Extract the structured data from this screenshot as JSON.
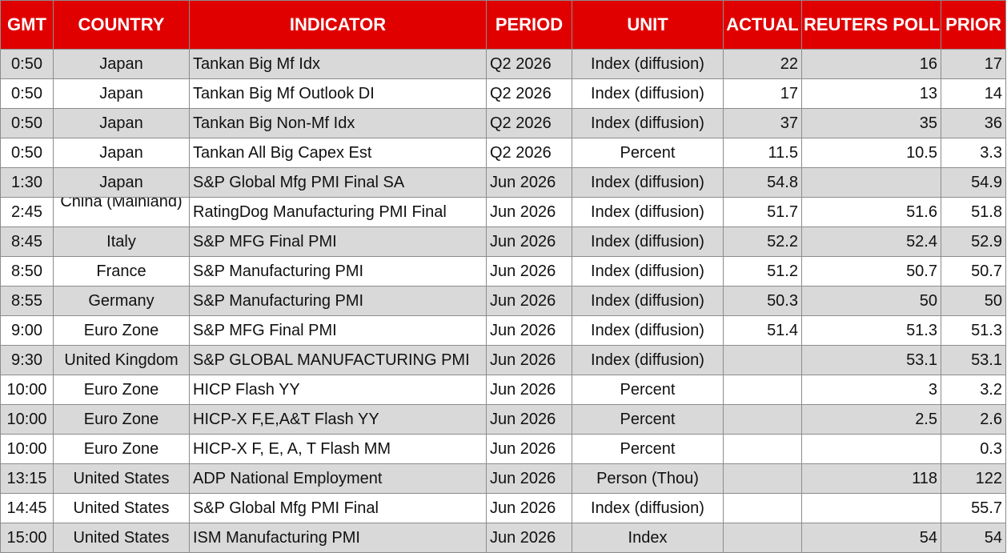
{
  "headers": [
    "GMT",
    "COUNTRY",
    "INDICATOR",
    "PERIOD",
    "UNIT",
    "ACTUAL",
    "REUTERS POLL",
    "PRIOR"
  ],
  "rows": [
    {
      "gmt": "0:50",
      "country": "Japan",
      "indicator": "Tankan Big Mf Idx",
      "period": "Q2 2026",
      "unit": "Index (diffusion)",
      "actual": "22",
      "poll": "16",
      "prior": "17"
    },
    {
      "gmt": "0:50",
      "country": "Japan",
      "indicator": "Tankan Big Mf Outlook DI",
      "period": "Q2 2026",
      "unit": "Index (diffusion)",
      "actual": "17",
      "poll": "13",
      "prior": "14"
    },
    {
      "gmt": "0:50",
      "country": "Japan",
      "indicator": "Tankan Big Non-Mf Idx",
      "period": "Q2 2026",
      "unit": "Index (diffusion)",
      "actual": "37",
      "poll": "35",
      "prior": "36"
    },
    {
      "gmt": "0:50",
      "country": "Japan",
      "indicator": "Tankan All Big Capex Est",
      "period": "Q2 2026",
      "unit": "Percent",
      "actual": "11.5",
      "poll": "10.5",
      "prior": "3.3"
    },
    {
      "gmt": "1:30",
      "country": "Japan",
      "indicator": "S&P Global Mfg PMI Final SA",
      "period": "Jun 2026",
      "unit": "Index (diffusion)",
      "actual": "54.8",
      "poll": "",
      "prior": "54.9"
    },
    {
      "gmt": "2:45",
      "country": "China (Mainland)",
      "indicator": "RatingDog Manufacturing PMI Final",
      "period": "Jun 2026",
      "unit": "Index (diffusion)",
      "actual": "51.7",
      "poll": "51.6",
      "prior": "51.8"
    },
    {
      "gmt": "8:45",
      "country": "Italy",
      "indicator": "S&P MFG Final PMI",
      "period": "Jun 2026",
      "unit": "Index (diffusion)",
      "actual": "52.2",
      "poll": "52.4",
      "prior": "52.9"
    },
    {
      "gmt": "8:50",
      "country": "France",
      "indicator": "S&P Manufacturing PMI",
      "period": "Jun 2026",
      "unit": "Index (diffusion)",
      "actual": "51.2",
      "poll": "50.7",
      "prior": "50.7"
    },
    {
      "gmt": "8:55",
      "country": "Germany",
      "indicator": "S&P Manufacturing PMI",
      "period": "Jun 2026",
      "unit": "Index (diffusion)",
      "actual": "50.3",
      "poll": "50",
      "prior": "50"
    },
    {
      "gmt": "9:00",
      "country": "Euro Zone",
      "indicator": "S&P MFG Final PMI",
      "period": "Jun 2026",
      "unit": "Index (diffusion)",
      "actual": "51.4",
      "poll": "51.3",
      "prior": "51.3"
    },
    {
      "gmt": "9:30",
      "country": "United Kingdom",
      "indicator": "S&P GLOBAL MANUFACTURING PMI",
      "period": "Jun 2026",
      "unit": "Index (diffusion)",
      "actual": "",
      "poll": "53.1",
      "prior": "53.1"
    },
    {
      "gmt": "10:00",
      "country": "Euro Zone",
      "indicator": "HICP Flash YY",
      "period": "Jun 2026",
      "unit": "Percent",
      "actual": "",
      "poll": "3",
      "prior": "3.2"
    },
    {
      "gmt": "10:00",
      "country": "Euro Zone",
      "indicator": "HICP-X F,E,A&T Flash YY",
      "period": "Jun 2026",
      "unit": "Percent",
      "actual": "",
      "poll": "2.5",
      "prior": "2.6"
    },
    {
      "gmt": "10:00",
      "country": "Euro Zone",
      "indicator": "HICP-X F, E, A, T Flash MM",
      "period": "Jun 2026",
      "unit": "Percent",
      "actual": "",
      "poll": "",
      "prior": "0.3"
    },
    {
      "gmt": "13:15",
      "country": "United States",
      "indicator": "ADP National Employment",
      "period": "Jun 2026",
      "unit": "Person (Thou)",
      "actual": "",
      "poll": "118",
      "prior": "122"
    },
    {
      "gmt": "14:45",
      "country": "United States",
      "indicator": "S&P Global Mfg PMI Final",
      "period": "Jun 2026",
      "unit": "Index (diffusion)",
      "actual": "",
      "poll": "",
      "prior": "55.7"
    },
    {
      "gmt": "15:00",
      "country": "United States",
      "indicator": "ISM Manufacturing PMI",
      "period": "Jun 2026",
      "unit": "Index",
      "actual": "",
      "poll": "54",
      "prior": "54"
    }
  ]
}
